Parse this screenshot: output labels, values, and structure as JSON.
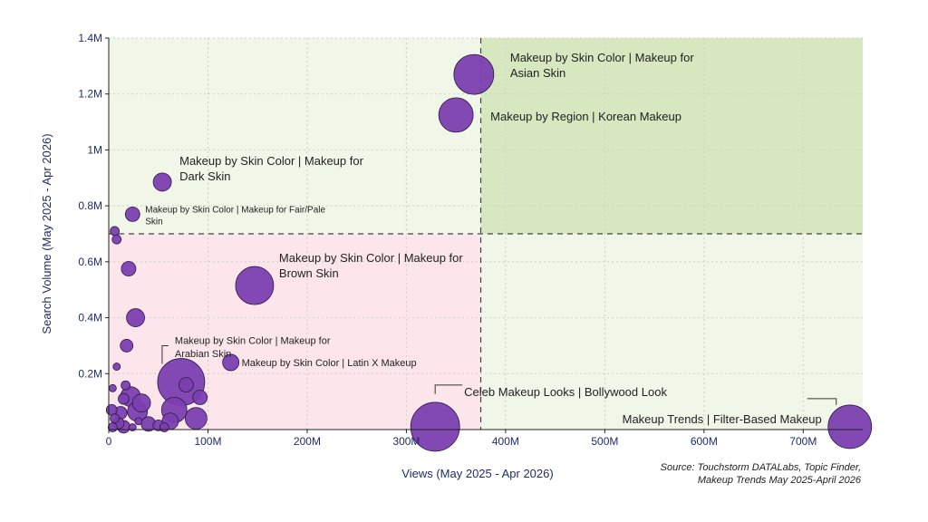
{
  "chart_data": {
    "type": "scatter",
    "subtype": "bubble",
    "title": "",
    "xlabel": "Views (May 2025 - Apr 2026)",
    "ylabel": "Search Volume (May 2025 - Apr 2026)",
    "xlim": [
      0,
      760000000
    ],
    "ylim": [
      0,
      1400000
    ],
    "xticks": [
      {
        "value": 0,
        "label": "0"
      },
      {
        "value": 100000000,
        "label": "100M"
      },
      {
        "value": 200000000,
        "label": "200M"
      },
      {
        "value": 300000000,
        "label": "300M"
      },
      {
        "value": 400000000,
        "label": "400M"
      },
      {
        "value": 500000000,
        "label": "500M"
      },
      {
        "value": 600000000,
        "label": "600M"
      },
      {
        "value": 700000000,
        "label": "700M"
      }
    ],
    "yticks": [
      {
        "value": 200000,
        "label": "0.2M"
      },
      {
        "value": 400000,
        "label": "0.4M"
      },
      {
        "value": 600000,
        "label": "0.6M"
      },
      {
        "value": 800000,
        "label": "0.8M"
      },
      {
        "value": 1000000,
        "label": "1M"
      },
      {
        "value": 1200000,
        "label": "1.2M"
      },
      {
        "value": 1400000,
        "label": "1.4M"
      }
    ],
    "grid": true,
    "quadrant_split": {
      "x": 375000000,
      "y": 700000
    },
    "colors": {
      "bubble_fill": "#7b3fb0",
      "bubble_stroke": "#2e1a47",
      "quad_top_left": "#f1f7e8",
      "quad_top_right": "#d7e8c0",
      "quad_bottom_left": "#fce6ec",
      "quad_bottom_right": "#f1f7e8",
      "axis_text": "#1f2d6b"
    },
    "points": [
      {
        "x": 368000000,
        "y": 1270000,
        "size": 22,
        "label": [
          "Makeup by Skin Color | Makeup for",
          "Asian Skin"
        ]
      },
      {
        "x": 350000000,
        "y": 1125000,
        "size": 19,
        "label": [
          "Makeup by Region | Korean Makeup"
        ]
      },
      {
        "x": 54000000,
        "y": 885000,
        "size": 10,
        "label": [
          "Makeup by Skin Color | Makeup for",
          "Dark Skin"
        ]
      },
      {
        "x": 24000000,
        "y": 770000,
        "size": 8,
        "label": [
          "Makeup by Skin Color | Makeup for Fair/Pale",
          "Skin"
        ]
      },
      {
        "x": 147000000,
        "y": 515000,
        "size": 21,
        "label": [
          "Makeup by Skin Color | Makeup for",
          "Brown Skin"
        ]
      },
      {
        "x": 123000000,
        "y": 240000,
        "size": 9,
        "label": [
          "Makeup by Skin Color | Latin X Makeup"
        ]
      },
      {
        "x": 73000000,
        "y": 170000,
        "size": 26,
        "label": [
          "Makeup by Skin Color | Makeup for",
          "Arabian Skin"
        ]
      },
      {
        "x": 329000000,
        "y": 10000,
        "size": 27,
        "label": [
          "Celeb Makeup Looks | Bollywood Look"
        ]
      },
      {
        "x": 747000000,
        "y": 10000,
        "size": 24,
        "label": [
          "Makeup Trends | Filter-Based Makeup"
        ]
      },
      {
        "x": 20000000,
        "y": 575000,
        "size": 8
      },
      {
        "x": 27000000,
        "y": 400000,
        "size": 10
      },
      {
        "x": 18000000,
        "y": 300000,
        "size": 7
      },
      {
        "x": 6000000,
        "y": 710000,
        "size": 5
      },
      {
        "x": 8000000,
        "y": 680000,
        "size": 5
      },
      {
        "x": 8000000,
        "y": 225000,
        "size": 4
      },
      {
        "x": 4000000,
        "y": 148000,
        "size": 4
      },
      {
        "x": 17000000,
        "y": 158000,
        "size": 5
      },
      {
        "x": 15000000,
        "y": 110000,
        "size": 6
      },
      {
        "x": 22000000,
        "y": 118000,
        "size": 11
      },
      {
        "x": 33000000,
        "y": 95000,
        "size": 10
      },
      {
        "x": 29000000,
        "y": 65000,
        "size": 11
      },
      {
        "x": 78000000,
        "y": 160000,
        "size": 8
      },
      {
        "x": 92000000,
        "y": 115000,
        "size": 8
      },
      {
        "x": 66000000,
        "y": 70000,
        "size": 14
      },
      {
        "x": 88000000,
        "y": 40000,
        "size": 12
      },
      {
        "x": 62000000,
        "y": 30000,
        "size": 9
      },
      {
        "x": 50000000,
        "y": 15000,
        "size": 6
      },
      {
        "x": 40000000,
        "y": 20000,
        "size": 8
      },
      {
        "x": 12000000,
        "y": 60000,
        "size": 7
      },
      {
        "x": 3000000,
        "y": 70000,
        "size": 6
      },
      {
        "x": 6000000,
        "y": 40000,
        "size": 5
      },
      {
        "x": 10000000,
        "y": 22000,
        "size": 6
      },
      {
        "x": 15000000,
        "y": 10000,
        "size": 7
      },
      {
        "x": 4000000,
        "y": 8000,
        "size": 5
      },
      {
        "x": 24000000,
        "y": 8000,
        "size": 4
      },
      {
        "x": 30000000,
        "y": 30000,
        "size": 4
      },
      {
        "x": 56000000,
        "y": 8000,
        "size": 5
      }
    ],
    "source": [
      "Source: Touchstorm DATALabs, Topic Finder,",
      "Makeup Trends May 2025-April 2026"
    ]
  }
}
